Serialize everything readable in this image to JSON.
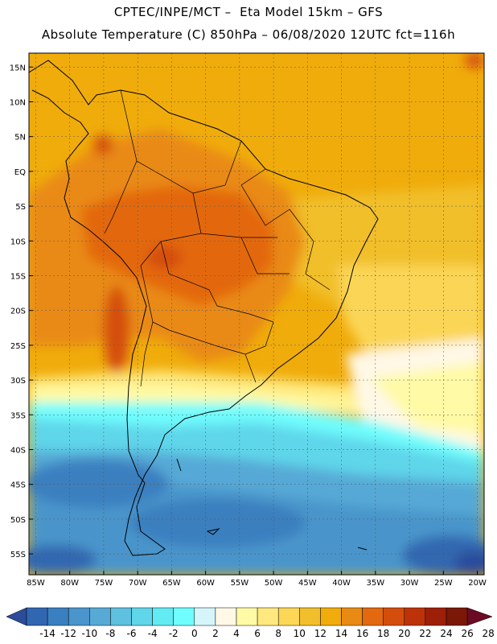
{
  "header": {
    "title_line1": "CPTEC/INPE/MCT –  Eta Model 15km – GFS",
    "title_line2": "Absolute Temperature (C) 850hPa – 06/08/2020 12UTC fct=116h"
  },
  "map": {
    "region": "South America",
    "variable": "Absolute Temperature (C) 850hPa",
    "lon_ticks": [
      "85W",
      "80W",
      "75W",
      "70W",
      "65W",
      "60W",
      "55W",
      "50W",
      "45W",
      "40W",
      "35W",
      "30W",
      "25W",
      "20W"
    ],
    "lat_ticks": [
      "15N",
      "10N",
      "5N",
      "EQ",
      "5S",
      "10S",
      "15S",
      "20S",
      "25S",
      "30S",
      "35S",
      "40S",
      "45S",
      "50S",
      "55S"
    ],
    "lon_range": [
      -86,
      -19
    ],
    "lat_range": [
      17,
      -58
    ]
  },
  "colorbar": {
    "labels": [
      "-14",
      "-12",
      "-10",
      "-8",
      "-6",
      "-4",
      "-2",
      "0",
      "2",
      "4",
      "6",
      "8",
      "10",
      "12",
      "14",
      "16",
      "18",
      "20",
      "22",
      "24",
      "26",
      "28"
    ],
    "colors": [
      "#2b4c9b",
      "#3067b0",
      "#3a7fbf",
      "#4a95cb",
      "#57a9d6",
      "#5fc0e0",
      "#5fd6ea",
      "#62ebf2",
      "#70fdfd",
      "#d5f5fb",
      "#fff8e6",
      "#fffaa5",
      "#ffe97e",
      "#fbd657",
      "#f1bf2b",
      "#f0ac0b",
      "#e98a14",
      "#e3680f",
      "#d44d0d",
      "#bd3208",
      "#9e1f08",
      "#7b1707",
      "#6b0a22"
    ]
  }
}
